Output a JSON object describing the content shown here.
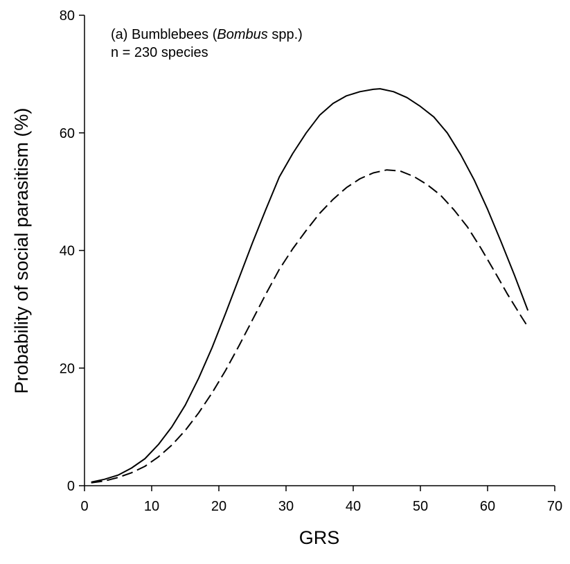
{
  "chart_data": {
    "type": "line",
    "xlabel": "GRS",
    "ylabel": "Probability of social parasitism (%)",
    "xlim": [
      0,
      70
    ],
    "ylim": [
      0,
      80
    ],
    "xticks": [
      0,
      10,
      20,
      30,
      40,
      50,
      60,
      70
    ],
    "yticks": [
      0,
      20,
      40,
      60,
      80
    ],
    "grid": false,
    "annotation": {
      "line1_prefix": "(a) Bumblebees (",
      "line1_italic": "Bombus",
      "line1_suffix": " spp.)",
      "line2": "n = 230 species"
    },
    "series": [
      {
        "style": "solid",
        "x": [
          1,
          3,
          5,
          7,
          9,
          11,
          13,
          15,
          17,
          19,
          21,
          23,
          25,
          27,
          29,
          31,
          33,
          35,
          37,
          39,
          41,
          43,
          44,
          46,
          48,
          50,
          52,
          54,
          56,
          58,
          60,
          62,
          64,
          66
        ],
        "y": [
          0.6,
          1.1,
          1.8,
          3.0,
          4.6,
          7.0,
          10.0,
          13.7,
          18.3,
          23.5,
          29.3,
          35.3,
          41.3,
          47.0,
          52.5,
          56.5,
          60.0,
          63.0,
          65.0,
          66.3,
          67.0,
          67.4,
          67.5,
          67.0,
          66.0,
          64.5,
          62.7,
          60.0,
          56.3,
          52.0,
          47.0,
          41.5,
          35.8,
          29.8
        ]
      },
      {
        "style": "dashed",
        "x": [
          1,
          3,
          5,
          7,
          9,
          11,
          13,
          15,
          17,
          19,
          21,
          23,
          25,
          27,
          29,
          31,
          33,
          35,
          37,
          39,
          41,
          43,
          45,
          47,
          49,
          51,
          53,
          55,
          57,
          59,
          61,
          63,
          65,
          66
        ],
        "y": [
          0.5,
          0.8,
          1.4,
          2.2,
          3.3,
          4.9,
          6.9,
          9.4,
          12.4,
          15.8,
          19.6,
          23.8,
          28.2,
          32.6,
          36.8,
          40.3,
          43.4,
          46.3,
          48.7,
          50.7,
          52.2,
          53.2,
          53.7,
          53.5,
          52.6,
          51.2,
          49.4,
          46.9,
          44.0,
          40.4,
          36.5,
          32.5,
          28.8,
          27.0
        ]
      }
    ]
  }
}
